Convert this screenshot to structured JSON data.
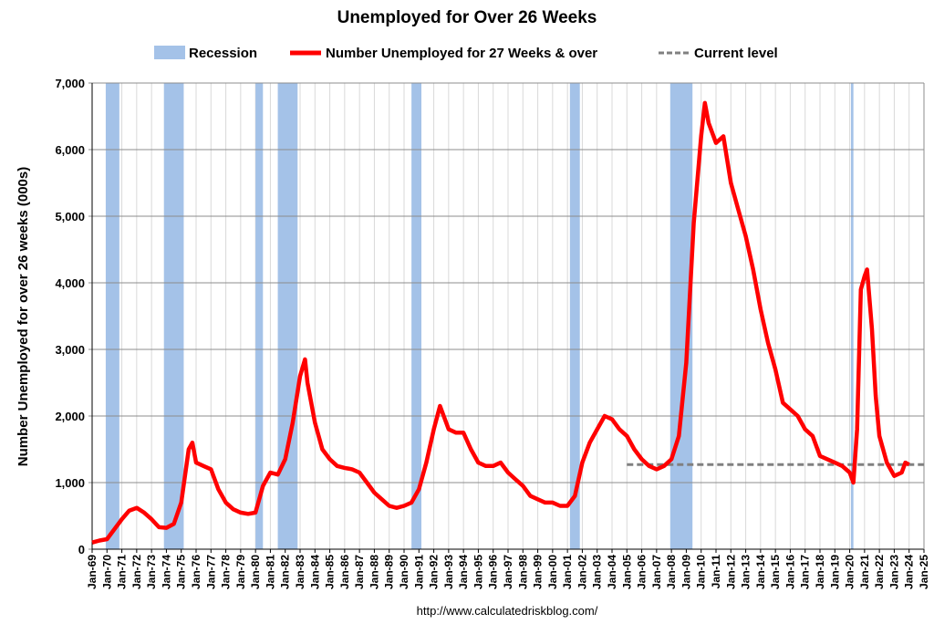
{
  "chart_data": {
    "type": "line",
    "title": "Unemployed for Over 26 Weeks",
    "y_label": "Number Unemployed for over 26 weeks (000s)",
    "source": "http://www.calculatedriskblog.com/",
    "xlim": [
      "Jan-69",
      "Jan-25"
    ],
    "xticks": [
      "Jan-69",
      "Jan-70",
      "Jan-71",
      "Jan-72",
      "Jan-73",
      "Jan-74",
      "Jan-75",
      "Jan-76",
      "Jan-77",
      "Jan-78",
      "Jan-79",
      "Jan-80",
      "Jan-81",
      "Jan-82",
      "Jan-83",
      "Jan-84",
      "Jan-85",
      "Jan-86",
      "Jan-87",
      "Jan-88",
      "Jan-89",
      "Jan-90",
      "Jan-91",
      "Jan-92",
      "Jan-93",
      "Jan-94",
      "Jan-95",
      "Jan-96",
      "Jan-97",
      "Jan-98",
      "Jan-99",
      "Jan-00",
      "Jan-01",
      "Jan-02",
      "Jan-03",
      "Jan-04",
      "Jan-05",
      "Jan-06",
      "Jan-07",
      "Jan-08",
      "Jan-09",
      "Jan-10",
      "Jan-11",
      "Jan-12",
      "Jan-13",
      "Jan-14",
      "Jan-15",
      "Jan-16",
      "Jan-17",
      "Jan-18",
      "Jan-19",
      "Jan-20",
      "Jan-21",
      "Jan-22",
      "Jan-23",
      "Jan-24",
      "Jan-25"
    ],
    "ylim": [
      0,
      7000
    ],
    "yticks": [
      0,
      {
        "value": 1000,
        "label": "1,000"
      },
      {
        "value": 2000,
        "label": "2,000"
      },
      {
        "value": 3000,
        "label": "3,000"
      },
      {
        "value": 4000,
        "label": "4,000"
      },
      {
        "value": 5000,
        "label": "5,000"
      },
      {
        "value": 6000,
        "label": "6,000"
      },
      {
        "value": 7000,
        "label": "7,000"
      }
    ],
    "grid": true,
    "recessions": {
      "name": "Recession",
      "color": "#a4c2e8",
      "periods": [
        [
          "Dec-69",
          "Nov-70"
        ],
        [
          "Nov-73",
          "Mar-75"
        ],
        [
          "Jan-80",
          "Jul-80"
        ],
        [
          "Jul-81",
          "Nov-82"
        ],
        [
          "Jul-90",
          "Mar-91"
        ],
        [
          "Mar-01",
          "Nov-01"
        ],
        [
          "Dec-07",
          "Jun-09"
        ],
        [
          "Feb-20",
          "Apr-20"
        ]
      ]
    },
    "current_level": {
      "name": "Current level",
      "color": "#808080",
      "value": 1270,
      "start": "Jan-05",
      "end": "Jan-25"
    },
    "series": [
      {
        "name": "Number Unemployed for 27 Weeks & over",
        "color": "#ff0000",
        "x": [
          "Jan-69",
          "Jul-69",
          "Jan-70",
          "Jul-70",
          "Jan-71",
          "Jul-71",
          "Jan-72",
          "Jul-72",
          "Jan-73",
          "Jul-73",
          "Jan-74",
          "Jul-74",
          "Jan-75",
          "Jul-75",
          "Oct-75",
          "Jan-76",
          "Jul-76",
          "Jan-77",
          "Jul-77",
          "Jan-78",
          "Jul-78",
          "Jan-79",
          "Jul-79",
          "Jan-80",
          "Jul-80",
          "Jan-81",
          "Jul-81",
          "Jan-82",
          "Jul-82",
          "Jan-83",
          "May-83",
          "Jul-83",
          "Jan-84",
          "Jul-84",
          "Jan-85",
          "Jul-85",
          "Jan-86",
          "Jul-86",
          "Jan-87",
          "Jul-87",
          "Jan-88",
          "Jul-88",
          "Jan-89",
          "Jul-89",
          "Jan-90",
          "Jul-90",
          "Jan-91",
          "Jul-91",
          "Jan-92",
          "Jun-92",
          "Jan-93",
          "Jul-93",
          "Jan-94",
          "Jul-94",
          "Jan-95",
          "Jul-95",
          "Jan-96",
          "Jul-96",
          "Jan-97",
          "Jul-97",
          "Jan-98",
          "Jul-98",
          "Jan-99",
          "Jul-99",
          "Jan-00",
          "Jul-00",
          "Jan-01",
          "Jul-01",
          "Jan-02",
          "Jul-02",
          "Jan-03",
          "Jul-03",
          "Jan-04",
          "Jul-04",
          "Jan-05",
          "Jul-05",
          "Jan-06",
          "Jul-06",
          "Jan-07",
          "Jul-07",
          "Jan-08",
          "Jul-08",
          "Jan-09",
          "Jul-09",
          "Jan-10",
          "Apr-10",
          "Jul-10",
          "Jan-11",
          "Jul-11",
          "Jan-12",
          "Jul-12",
          "Jan-13",
          "Jul-13",
          "Jan-14",
          "Jul-14",
          "Jan-15",
          "Jul-15",
          "Jan-16",
          "Jul-16",
          "Jan-17",
          "Jul-17",
          "Jan-18",
          "Jul-18",
          "Jan-19",
          "Jul-19",
          "Jan-20",
          "Apr-20",
          "Jul-20",
          "Oct-20",
          "Jan-21",
          "Mar-21",
          "Jul-21",
          "Oct-21",
          "Jan-22",
          "Jul-22",
          "Jan-23",
          "Jul-23",
          "Oct-23",
          "Jan-24"
        ],
        "values": [
          100,
          130,
          150,
          300,
          450,
          580,
          620,
          550,
          450,
          330,
          320,
          380,
          700,
          1500,
          1600,
          1300,
          1250,
          1200,
          900,
          700,
          600,
          550,
          530,
          550,
          950,
          1150,
          1120,
          1350,
          1900,
          2600,
          2850,
          2500,
          1900,
          1500,
          1350,
          1250,
          1220,
          1200,
          1150,
          1000,
          850,
          750,
          650,
          620,
          650,
          700,
          900,
          1300,
          1800,
          2150,
          1800,
          1750,
          1750,
          1500,
          1300,
          1250,
          1250,
          1300,
          1150,
          1050,
          950,
          800,
          750,
          700,
          700,
          650,
          650,
          800,
          1300,
          1600,
          1800,
          2000,
          1950,
          1800,
          1700,
          1500,
          1350,
          1250,
          1200,
          1250,
          1350,
          1700,
          2800,
          4900,
          6200,
          6700,
          6400,
          6100,
          6200,
          5500,
          5100,
          4700,
          4200,
          3600,
          3100,
          2700,
          2200,
          2100,
          2000,
          1800,
          1700,
          1400,
          1350,
          1300,
          1250,
          1150,
          1000,
          1800,
          3900,
          4100,
          4200,
          3300,
          2300,
          1700,
          1300,
          1100,
          1150,
          1300,
          1270
        ]
      }
    ]
  }
}
